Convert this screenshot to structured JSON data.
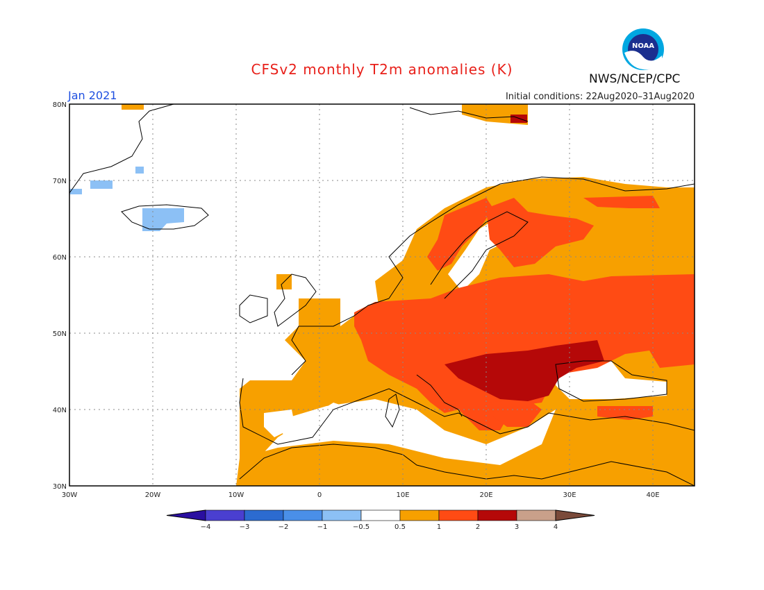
{
  "title": "CFSv2 monthly T2m anomalies (K)",
  "month": "Jan 2021",
  "initial_conditions": "Initial conditions: 22Aug2020–31Aug2020",
  "agency": "NWS/NCEP/CPC",
  "logo_text": "NOAA",
  "lat_labels": [
    "80N",
    "70N",
    "60N",
    "50N",
    "40N",
    "30N"
  ],
  "lon_labels": [
    "30W",
    "20W",
    "10W",
    "0",
    "10E",
    "20E",
    "30E",
    "40E"
  ],
  "colorbar": {
    "labels": [
      "−4",
      "−3",
      "−2",
      "−1",
      "−0.5",
      "0.5",
      "1",
      "2",
      "3",
      "4"
    ],
    "colors": [
      "#2a0fa0",
      "#4a3fd0",
      "#2c6bd0",
      "#4a8fe8",
      "#8cc0f5",
      "#ffffff",
      "#f7a000",
      "#ff4b14",
      "#b50808",
      "#c9a08a",
      "#7a4a3a"
    ]
  },
  "colors": {
    "title": "#e8201a",
    "month": "#1e4fe0"
  }
}
